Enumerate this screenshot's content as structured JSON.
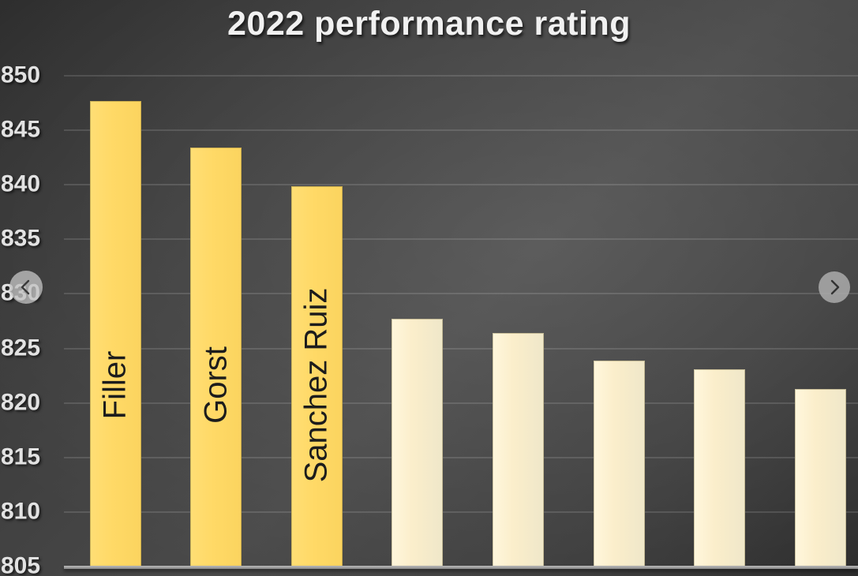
{
  "title": "2022 performance rating",
  "chart_data": {
    "type": "bar",
    "title": "2022 performance rating",
    "categories": [
      "Filler",
      "Gorst",
      "Sanchez Ruiz",
      "",
      "",
      "",
      "",
      ""
    ],
    "values": [
      847.7,
      843.4,
      839.9,
      827.7,
      826.4,
      823.9,
      823.1,
      821.3
    ],
    "xlabel": "",
    "ylabel": "",
    "ylim": [
      805,
      850
    ],
    "yticks": [
      850,
      845,
      840,
      835,
      830,
      825,
      820,
      815,
      810,
      805
    ],
    "grid": true,
    "legend": false,
    "bar_colors": [
      "#FFD966",
      "#FFD966",
      "#FFD966",
      "#FBEECB",
      "#FBEECB",
      "#FBEECB",
      "#FBEECB",
      "#FBEECB"
    ],
    "category_label_position": "inside-bar-vertical"
  },
  "nav": {
    "prev_icon": "chevron-left-icon",
    "next_icon": "chevron-right-icon"
  },
  "colors": {
    "accent_gold": "#FFD966",
    "muted_cream": "#FBEECB",
    "background_dark": "#2e2e2e",
    "background_light": "#4a4a4a",
    "title_text": "#f1f1f1",
    "tick_text": "#e2e2e2",
    "bar_label_text": "#1c1c1c"
  }
}
